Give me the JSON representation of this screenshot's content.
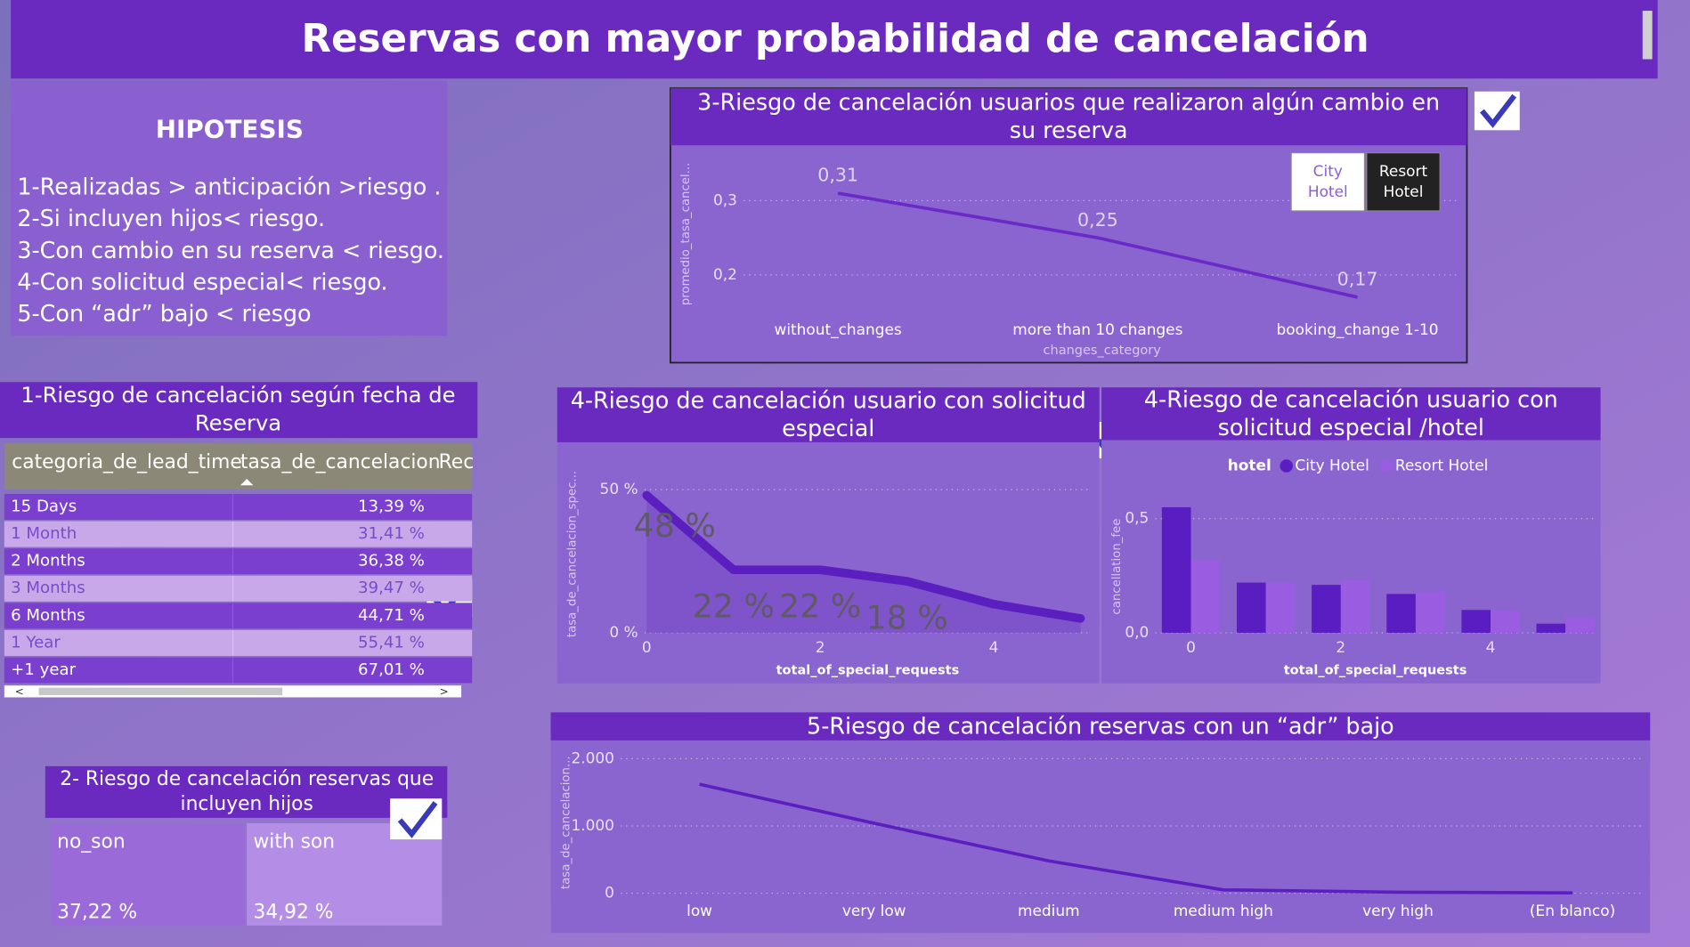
{
  "title": "Reservas con mayor probabilidad de cancelación",
  "hypothesis": {
    "title": "HIPOTESIS",
    "items": [
      "1-Realizadas > anticipación >riesgo .",
      "2-Si incluyen hijos< riesgo.",
      "3-Con cambio en su reserva < riesgo.",
      "4-Con solicitud especial<  riesgo.",
      "5-Con “adr” bajo < riesgo"
    ]
  },
  "table": {
    "title": "1-Riesgo de cancelación según fecha de Reserva",
    "columns": [
      "categoria_de_lead_time",
      "tasa_de_cancelacion",
      "Rec"
    ],
    "rows": [
      [
        "15 Days",
        "13,39 %"
      ],
      [
        "1 Month",
        "31,41 %"
      ],
      [
        "2 Months",
        "36,38 %"
      ],
      [
        "3 Months",
        "39,47 %"
      ],
      [
        "6 Months",
        "44,71 %"
      ],
      [
        "1 Year",
        "55,41 %"
      ],
      [
        "+1 year",
        "67,01 %"
      ]
    ]
  },
  "cards": {
    "title": "2- Riesgo de cancelación reservas que incluyen hijos",
    "items": [
      {
        "label": "no_son",
        "value": "37,22 %"
      },
      {
        "label": "with son",
        "value": "34,92 %"
      }
    ]
  },
  "chart_data": [
    {
      "type": "line",
      "title": "3-Riesgo de cancelación usuarios que realizaron algún cambio en su reserva",
      "categories": [
        "without_changes",
        "more than 10 changes",
        "booking_change 1-10"
      ],
      "values": [
        0.31,
        0.25,
        0.17
      ],
      "value_labels": [
        "0,31",
        "0,25",
        "0,17"
      ],
      "ylim": [
        0.15,
        0.36
      ],
      "yticks": [
        {
          "value": 0.2,
          "label": "0,2"
        },
        {
          "value": 0.3,
          "label": "0,3"
        }
      ],
      "xlabel": "changes_category",
      "ylabel": "promedio_tasa_cancel...",
      "color": "#6a2ac7",
      "grid": true,
      "slicer": [
        "City Hotel",
        "Resort Hotel"
      ]
    },
    {
      "type": "area",
      "title": "4-Riesgo de cancelación usuario con solicitud especial",
      "x": [
        0,
        1,
        2,
        3,
        4,
        5
      ],
      "values": [
        48,
        22,
        22,
        18,
        10,
        5
      ],
      "value_labels": [
        "48 %",
        "22 %",
        "22 %",
        "18 %",
        null,
        null
      ],
      "xlim": [
        0,
        5.15
      ],
      "xticks": [
        0,
        2,
        4
      ],
      "ylim": [
        0,
        55
      ],
      "yticks": [
        {
          "value": 0,
          "label": "0 %"
        },
        {
          "value": 50,
          "label": "50 %"
        }
      ],
      "xlabel": "total_of_special_requests",
      "ylabel": "tasa_de_cancelacion_spec...",
      "color": "#5b1fc0",
      "grid": true
    },
    {
      "type": "bar",
      "title": "4-Riesgo de cancelación usuario con solicitud especial /hotel",
      "x": [
        0,
        1,
        2,
        3,
        4,
        5
      ],
      "legend_title": "hotel",
      "series": [
        {
          "name": "City Hotel",
          "color": "#5a1dc2",
          "values": [
            0.55,
            0.22,
            0.21,
            0.17,
            0.1,
            0.04
          ]
        },
        {
          "name": "Resort Hotel",
          "color": "#9a5ce0",
          "values": [
            0.32,
            0.22,
            0.23,
            0.18,
            0.1,
            0.07
          ]
        }
      ],
      "xlim": [
        -0.45,
        5.4
      ],
      "xticks": [
        0,
        2,
        4
      ],
      "ylim": [
        0,
        0.58
      ],
      "yticks": [
        {
          "value": 0,
          "label": "0,0"
        },
        {
          "value": 0.5,
          "label": "0,5"
        }
      ],
      "xlabel": "total_of_special_requests",
      "ylabel": "cancellation_fee",
      "grid": true
    },
    {
      "type": "line",
      "title": "5-Riesgo de cancelación reservas con un “adr” bajo",
      "categories": [
        "low",
        "very low",
        "medium",
        "medium high",
        "very high",
        "(En blanco)"
      ],
      "values": [
        1620,
        1040,
        480,
        50,
        15,
        5
      ],
      "ylim": [
        0,
        2100
      ],
      "yticks": [
        0,
        {
          "value": 1000,
          "label": "1.000"
        },
        {
          "value": 2000,
          "label": "2.000"
        }
      ],
      "ylabel": "tasa_de_cancelacion...",
      "color": "#5b1fc0",
      "grid": true
    }
  ]
}
